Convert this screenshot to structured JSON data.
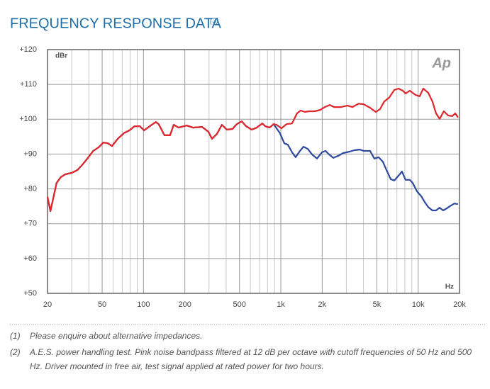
{
  "chart_data": {
    "type": "line",
    "title": "FREQUENCY RESPONSE DATA",
    "title_note": "(3)",
    "y_label": "dBr",
    "x_label": "Hz",
    "logo": "Ap",
    "xlog": true,
    "grid": true,
    "xlim": [
      20,
      20000
    ],
    "ylim": [
      50,
      120
    ],
    "xticks": [
      20,
      50,
      100,
      200,
      500,
      {
        "value": 1000,
        "label": "1k"
      },
      {
        "value": 2000,
        "label": "2k"
      },
      {
        "value": 5000,
        "label": "5k"
      },
      {
        "value": 10000,
        "label": "10k"
      },
      {
        "value": 20000,
        "label": "20k"
      }
    ],
    "xminor": [
      30,
      40,
      60,
      70,
      80,
      90,
      300,
      400,
      600,
      700,
      800,
      900,
      3000,
      4000,
      6000,
      7000,
      8000,
      9000
    ],
    "yticks": [
      {
        "value": 50,
        "label": "+50"
      },
      {
        "value": 60,
        "label": "+60"
      },
      {
        "value": 70,
        "label": "+70"
      },
      {
        "value": 80,
        "label": "+80"
      },
      {
        "value": 90,
        "label": "+90"
      },
      {
        "value": 100,
        "label": "+100"
      },
      {
        "value": 110,
        "label": "+110"
      },
      {
        "value": 120,
        "label": "+120"
      }
    ],
    "series": [
      {
        "color": "#2e4a9e",
        "x": [
          20,
          21,
          23.3,
          25,
          27,
          30,
          33,
          36,
          39,
          43,
          47,
          51,
          55,
          59,
          65,
          72,
          79,
          86,
          94,
          101,
          113,
          123,
          129,
          142,
          156,
          166,
          180,
          206,
          229,
          267,
          297,
          315,
          343,
          372,
          404,
          445,
          478,
          520,
          558,
          614,
          667,
          733,
          769,
          826,
          887,
          986,
          1059,
          1125,
          1208,
          1282,
          1378,
          1462,
          1571,
          1687,
          1833,
          1991,
          2114,
          2244,
          2410,
          2618,
          2844,
          3164,
          3436,
          3740,
          4016,
          4468,
          4797,
          5152,
          5534,
          5875,
          6310,
          6696,
          7194,
          7621,
          8093,
          8690,
          9120,
          9795,
          10520,
          11170,
          11832,
          12706,
          13490,
          14322,
          15206,
          16140,
          17300,
          18360,
          19500
        ],
        "values": [
          77.7,
          73.6,
          81.7,
          83.4,
          84.2,
          84.6,
          85.4,
          87.0,
          88.7,
          90.9,
          91.9,
          93.3,
          93.1,
          92.3,
          94.4,
          96.0,
          96.8,
          98.0,
          98.0,
          96.8,
          98.2,
          99.2,
          98.6,
          95.4,
          95.4,
          98.4,
          97.6,
          98.2,
          97.6,
          97.8,
          96.4,
          94.4,
          95.8,
          98.4,
          97.0,
          97.2,
          98.6,
          99.4,
          98.0,
          97.0,
          97.6,
          98.8,
          98.0,
          97.6,
          98.6,
          96.0,
          93.1,
          92.7,
          90.5,
          89.1,
          90.9,
          92.1,
          91.5,
          89.9,
          88.7,
          90.5,
          90.9,
          89.9,
          88.9,
          89.5,
          90.3,
          90.7,
          91.1,
          91.3,
          90.9,
          90.9,
          88.7,
          89.1,
          87.8,
          85.4,
          82.8,
          82.4,
          83.8,
          85.0,
          82.6,
          82.6,
          81.7,
          79.3,
          77.9,
          76.2,
          74.8,
          73.8,
          73.8,
          74.6,
          73.8,
          74.4,
          75.2,
          75.8,
          75.6
        ]
      },
      {
        "color": "#e0262b",
        "x": [
          20,
          21,
          23.3,
          25,
          27,
          30,
          33,
          36,
          39,
          43,
          47,
          51,
          55,
          59,
          65,
          72,
          79,
          86,
          94,
          101,
          113,
          123,
          129,
          142,
          156,
          166,
          180,
          206,
          229,
          267,
          297,
          315,
          343,
          372,
          404,
          445,
          478,
          520,
          558,
          614,
          667,
          733,
          769,
          826,
          887,
          931,
          1012,
          1099,
          1208,
          1312,
          1394,
          1496,
          1607,
          1766,
          1944,
          2089,
          2270,
          2438,
          2744,
          3055,
          3319,
          3692,
          4016,
          4468,
          4911,
          5273,
          5663,
          6152,
          6696,
          7194,
          7727,
          8093,
          8690,
          9550,
          10258,
          10890,
          11832,
          12706,
          13490,
          14322,
          15382,
          16520,
          17743,
          18617,
          19500
        ],
        "values": [
          77.7,
          73.6,
          81.7,
          83.4,
          84.2,
          84.6,
          85.4,
          87.0,
          88.7,
          90.9,
          91.9,
          93.3,
          93.1,
          92.3,
          94.4,
          96.0,
          96.8,
          98.0,
          98.0,
          96.8,
          98.2,
          99.2,
          98.6,
          95.4,
          95.4,
          98.4,
          97.6,
          98.2,
          97.6,
          97.8,
          96.4,
          94.4,
          95.8,
          98.4,
          97.0,
          97.2,
          98.6,
          99.4,
          98.0,
          97.0,
          97.6,
          98.8,
          98.0,
          97.6,
          98.6,
          98.4,
          97.4,
          98.6,
          98.8,
          101.7,
          102.5,
          102.1,
          102.3,
          102.3,
          102.7,
          103.5,
          104.1,
          103.5,
          103.5,
          103.9,
          103.5,
          104.5,
          104.3,
          103.3,
          102.1,
          102.9,
          105.1,
          106.2,
          108.4,
          108.8,
          108.2,
          107.4,
          108.2,
          107.0,
          106.6,
          108.8,
          107.6,
          105.1,
          101.7,
          100.1,
          102.3,
          101.1,
          100.9,
          101.7,
          100.5
        ]
      }
    ]
  },
  "notes": [
    {
      "num": "(1)",
      "text": "Please enquire about alternative impedances."
    },
    {
      "num": "(2)",
      "text": "A.E.S. power handling test. Pink noise bandpass filtered at 12 dB per octave with cutoff frequencies of 50 Hz and 500 Hz. Driver mounted in free air, test signal applied at rated power for two hours."
    }
  ]
}
